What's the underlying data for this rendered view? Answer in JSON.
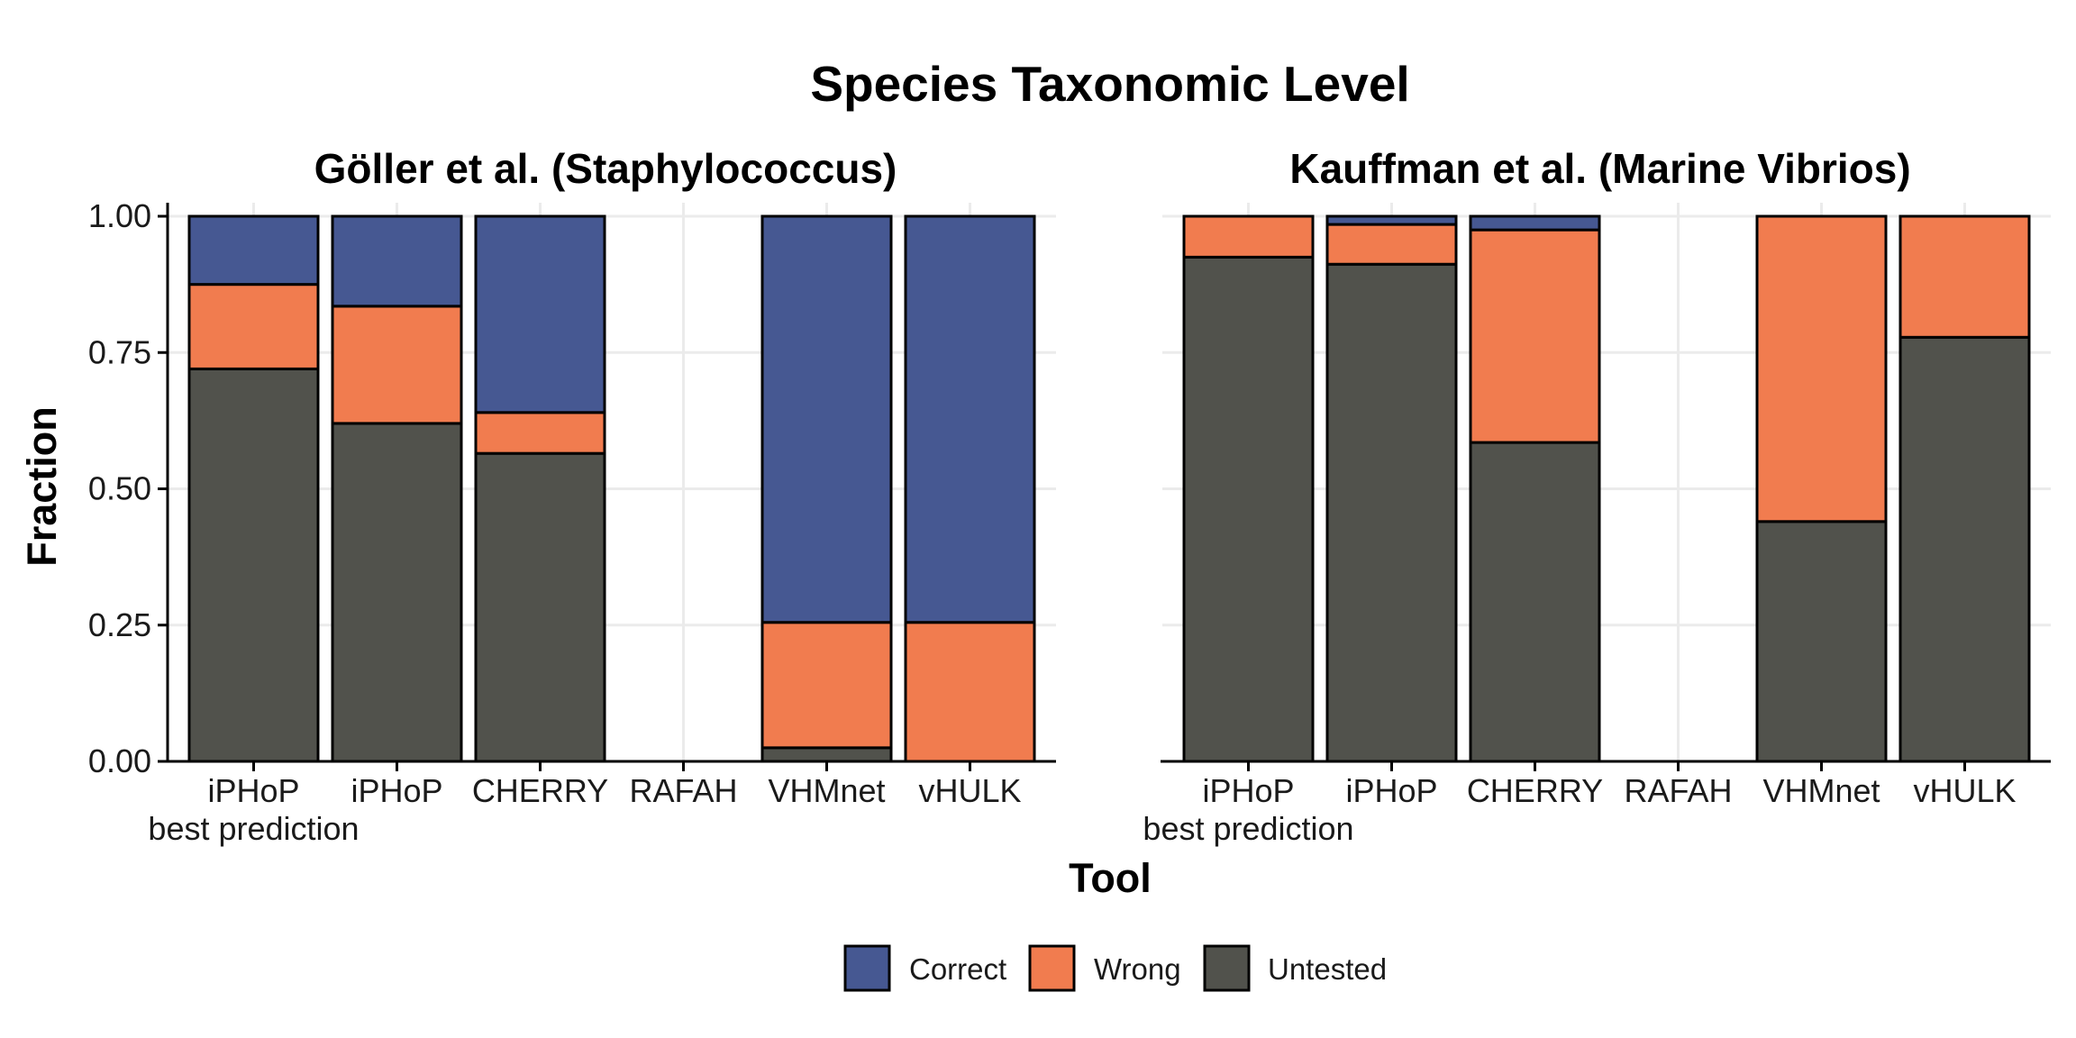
{
  "chart_data": {
    "type": "bar",
    "stacked": true,
    "title": "Species Taxonomic Level",
    "xlabel": "Tool",
    "ylabel": "Fraction",
    "ylim": [
      0,
      1
    ],
    "yticks": [
      "0.00",
      "0.25",
      "0.50",
      "0.75",
      "1.00"
    ],
    "grid": true,
    "legend_position": "bottom",
    "categories": [
      [
        "iPHoP",
        "best prediction"
      ],
      [
        "iPHoP"
      ],
      [
        "CHERRY"
      ],
      [
        "RAFAH"
      ],
      [
        "VHMnet"
      ],
      [
        "vHULK"
      ]
    ],
    "series_colors": {
      "Correct": "#465892",
      "Wrong": "#F17C4F",
      "Untested": "#51524C"
    },
    "legend": [
      "Correct",
      "Wrong",
      "Untested"
    ],
    "facets": [
      {
        "title": "Göller et al. (Staphylococcus)",
        "series": [
          {
            "name": "Untested",
            "values": [
              0.72,
              0.62,
              0.565,
              0,
              0.025,
              0
            ]
          },
          {
            "name": "Wrong",
            "values": [
              0.155,
              0.215,
              0.075,
              0,
              0.23,
              0.255
            ]
          },
          {
            "name": "Correct",
            "values": [
              0.125,
              0.165,
              0.36,
              0,
              0.745,
              0.745
            ]
          }
        ]
      },
      {
        "title": "Kauffman et al. (Marine Vibrios)",
        "series": [
          {
            "name": "Untested",
            "values": [
              0.925,
              0.912,
              0.585,
              0,
              0.44,
              0.778
            ]
          },
          {
            "name": "Wrong",
            "values": [
              0.075,
              0.073,
              0.39,
              0,
              0.56,
              0.222
            ]
          },
          {
            "name": "Correct",
            "values": [
              0,
              0.015,
              0.025,
              0,
              0,
              0
            ]
          }
        ]
      }
    ]
  }
}
